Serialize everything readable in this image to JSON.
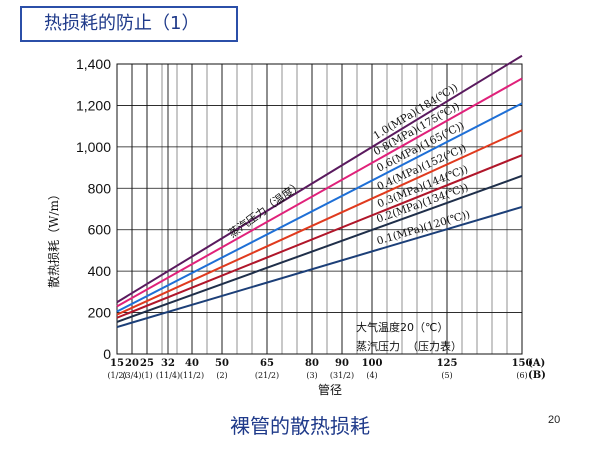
{
  "slide": {
    "title": "热损耗的防止（1）",
    "caption": "裸管的散热损耗",
    "page_number": "20"
  },
  "chart_data": {
    "type": "line",
    "title": "",
    "xlabel": "管径",
    "ylabel": "散热损耗（W/m）",
    "ylim": [
      0,
      1400
    ],
    "yticks": [
      0,
      200,
      400,
      600,
      800,
      1000,
      1200,
      1400
    ],
    "ytick_labels": [
      "0",
      "200",
      "400",
      "600",
      "800",
      "1,000",
      "1,200",
      "1,400"
    ],
    "x_mm": [
      15,
      20,
      25,
      32,
      40,
      50,
      65,
      80,
      90,
      100,
      125,
      150
    ],
    "x_tick_labels_mm": [
      "15",
      "20",
      "25",
      "32",
      "40",
      "50",
      "65",
      "80",
      "90",
      "100",
      "125",
      "150"
    ],
    "x_tick_labels_inch": [
      "(1/2)",
      "(3/4)",
      "(1)",
      "(11/4)",
      "(11/2)",
      "(2)",
      "(21/2)",
      "(3)",
      "(31/2)",
      "(4)",
      "(5)",
      "(6)"
    ],
    "x_unit_labels": [
      "(A)",
      "(B)"
    ],
    "grid": true,
    "series_group_label": "蒸汽压力（温度）",
    "series": [
      {
        "name": "1.0(MPa)(184(℃))",
        "color": "#5a1a5e",
        "x": [
          15,
          150
        ],
        "y": [
          250,
          1440
        ]
      },
      {
        "name": "0.8(MPa)(175(℃))",
        "color": "#e0217a",
        "x": [
          15,
          150
        ],
        "y": [
          230,
          1330
        ]
      },
      {
        "name": "0.6(MPa)(165(℃))",
        "color": "#1e6fd6",
        "x": [
          15,
          150
        ],
        "y": [
          205,
          1210
        ]
      },
      {
        "name": "0.4(MPa)(152(℃))",
        "color": "#e03a1e",
        "x": [
          15,
          150
        ],
        "y": [
          190,
          1080
        ]
      },
      {
        "name": "0.3(MPa)(144(℃))",
        "color": "#b0162a",
        "x": [
          15,
          150
        ],
        "y": [
          175,
          960
        ]
      },
      {
        "name": "0.2(MPa)(134(℃))",
        "color": "#1f2f4a",
        "x": [
          15,
          150
        ],
        "y": [
          155,
          860
        ]
      },
      {
        "name": "0.1(MPa)(120(℃))",
        "color": "#1c3f78",
        "x": [
          15,
          150
        ],
        "y": [
          130,
          710
        ]
      }
    ],
    "annotations": [
      "大气温度20（℃）",
      "蒸汽压力  （压力表）"
    ]
  }
}
